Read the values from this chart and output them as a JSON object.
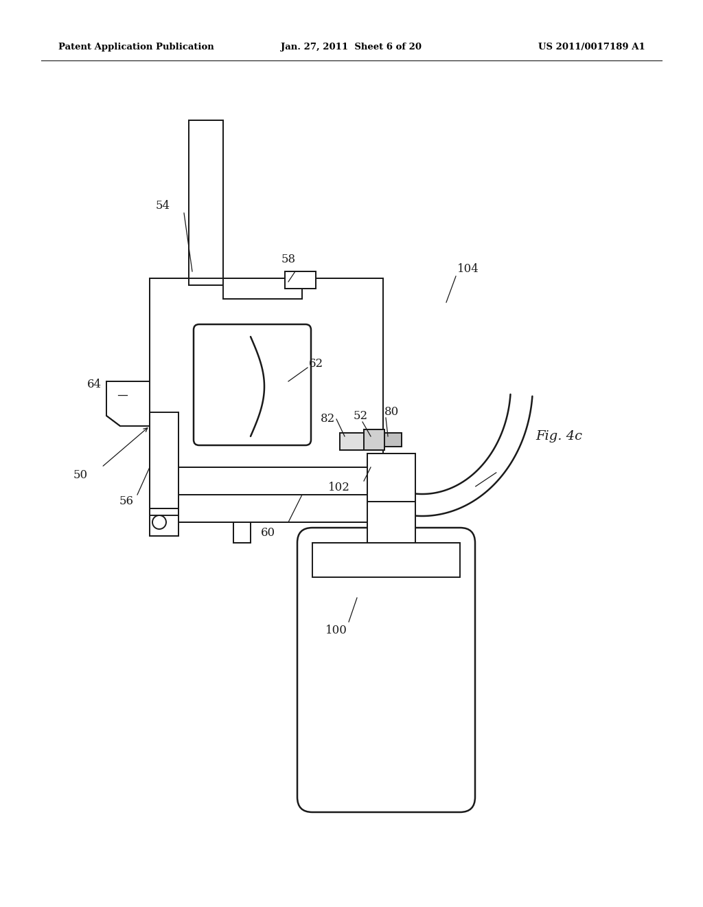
{
  "background_color": "#ffffff",
  "header_left": "Patent Application Publication",
  "header_mid": "Jan. 27, 2011  Sheet 6 of 20",
  "header_right": "US 2011/0017189 A1",
  "fig_label": "Fig. 4c",
  "line_color": "#1a1a1a",
  "lw": 1.4
}
